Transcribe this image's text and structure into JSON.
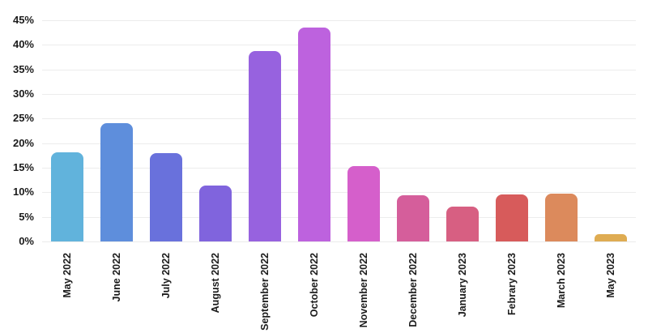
{
  "chart_data": {
    "type": "bar",
    "title": "",
    "xlabel": "",
    "ylabel": "",
    "unit": "%",
    "categories": [
      "May 2022",
      "June 2022",
      "July 2022",
      "August 2022",
      "September 2022",
      "October 2022",
      "November 2022",
      "December 2022",
      "January 2023",
      "Febrary 2023",
      "March 2023",
      "May 2023"
    ],
    "values": [
      18.2,
      24.1,
      17.9,
      11.3,
      38.7,
      43.5,
      15.3,
      9.4,
      7.1,
      9.6,
      9.7,
      1.5
    ],
    "bar_colors": [
      "#61B3DC",
      "#5E8EDC",
      "#6971DC",
      "#8064DD",
      "#9762DF",
      "#BD62DE",
      "#D55FCB",
      "#D55E9B",
      "#D75F82",
      "#D75B5B",
      "#DC8A5C",
      "#DFAC52"
    ],
    "y_ticks": [
      0,
      5,
      10,
      15,
      20,
      25,
      30,
      35,
      40,
      45
    ],
    "y_tick_labels": [
      "0%",
      "5%",
      "10%",
      "15%",
      "20%",
      "25%",
      "30%",
      "35%",
      "40%",
      "45%"
    ],
    "ylim": [
      0,
      45
    ],
    "grid": "horizontal",
    "legend": "none",
    "colors": {
      "background": "#ffffff",
      "gridline": "#ececec",
      "axis_label": "#1b1b1b"
    }
  }
}
